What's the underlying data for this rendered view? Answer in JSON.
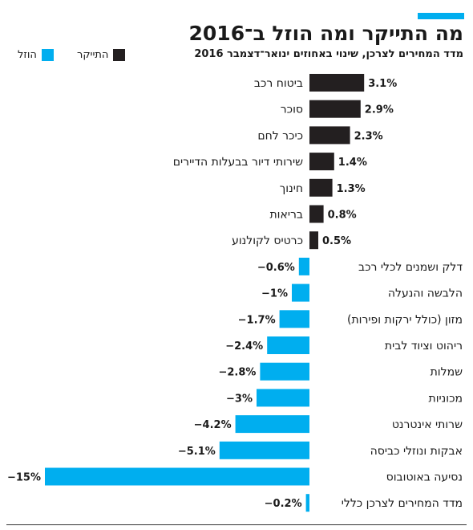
{
  "header": {
    "title": "מה התייקר ומה הוזל ב־2016",
    "subtitle": "מדד המחירים לצרכן, שינוי באחוזים ינואר־דצמבר 2016"
  },
  "legend": {
    "rose_label": "התייקר",
    "fell_label": "הוזל"
  },
  "colors": {
    "rose": "#231f20",
    "fell": "#00aeef",
    "accent": "#00aeef"
  },
  "chart_data": {
    "type": "bar",
    "orientation": "horizontal",
    "categories": [
      "ביטוח רכב",
      "סוכר",
      "כיכר לחם",
      "שירותי דיור בבעלות הדיירים",
      "חינוך",
      "בריאות",
      "כרטיס לקולנוע",
      "דלק ושמנים לכלי רכב",
      "הלבשה והנעלה",
      "מזון (כולל ירקות ופירות)",
      "ריהוט וציוד לבית",
      "שמלות",
      "מכוניות",
      "שרותי אינטרנט",
      "אבקות ונוזלי כביסה",
      "נסיעה באוטובוס",
      "מדד המחירים לצרכן כללי"
    ],
    "values": [
      3.1,
      2.9,
      2.3,
      1.4,
      1.3,
      0.8,
      0.5,
      -0.6,
      -1,
      -1.7,
      -2.4,
      -2.8,
      -3,
      -4.2,
      -5.1,
      -15,
      -0.2
    ],
    "value_labels": [
      "3.1%",
      "2.9%",
      "2.3%",
      "1.4%",
      "1.3%",
      "0.8%",
      "0.5%",
      "−0.6%",
      "−1%",
      "−1.7%",
      "−2.4%",
      "−2.8%",
      "−3%",
      "−4.2%",
      "−5.1%",
      "−15%",
      "−0.2%"
    ],
    "legend_position": "top-left",
    "grid": false
  }
}
